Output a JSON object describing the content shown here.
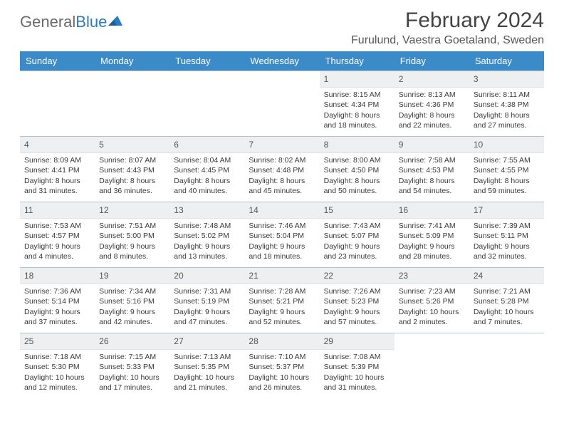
{
  "brand": {
    "part1": "General",
    "part2": "Blue"
  },
  "title": "February 2024",
  "location": "Furulund, Vaestra Goetaland, Sweden",
  "columns": [
    "Sunday",
    "Monday",
    "Tuesday",
    "Wednesday",
    "Thursday",
    "Friday",
    "Saturday"
  ],
  "colors": {
    "header_bg": "#3b8bc8",
    "header_fg": "#ffffff",
    "daynum_bg": "#edeff1",
    "border": "#b8c2cc"
  },
  "weeks": [
    [
      {
        "n": "",
        "sr": "",
        "ss": "",
        "d1": "",
        "d2": ""
      },
      {
        "n": "",
        "sr": "",
        "ss": "",
        "d1": "",
        "d2": ""
      },
      {
        "n": "",
        "sr": "",
        "ss": "",
        "d1": "",
        "d2": ""
      },
      {
        "n": "",
        "sr": "",
        "ss": "",
        "d1": "",
        "d2": ""
      },
      {
        "n": "1",
        "sr": "Sunrise: 8:15 AM",
        "ss": "Sunset: 4:34 PM",
        "d1": "Daylight: 8 hours",
        "d2": "and 18 minutes."
      },
      {
        "n": "2",
        "sr": "Sunrise: 8:13 AM",
        "ss": "Sunset: 4:36 PM",
        "d1": "Daylight: 8 hours",
        "d2": "and 22 minutes."
      },
      {
        "n": "3",
        "sr": "Sunrise: 8:11 AM",
        "ss": "Sunset: 4:38 PM",
        "d1": "Daylight: 8 hours",
        "d2": "and 27 minutes."
      }
    ],
    [
      {
        "n": "4",
        "sr": "Sunrise: 8:09 AM",
        "ss": "Sunset: 4:41 PM",
        "d1": "Daylight: 8 hours",
        "d2": "and 31 minutes."
      },
      {
        "n": "5",
        "sr": "Sunrise: 8:07 AM",
        "ss": "Sunset: 4:43 PM",
        "d1": "Daylight: 8 hours",
        "d2": "and 36 minutes."
      },
      {
        "n": "6",
        "sr": "Sunrise: 8:04 AM",
        "ss": "Sunset: 4:45 PM",
        "d1": "Daylight: 8 hours",
        "d2": "and 40 minutes."
      },
      {
        "n": "7",
        "sr": "Sunrise: 8:02 AM",
        "ss": "Sunset: 4:48 PM",
        "d1": "Daylight: 8 hours",
        "d2": "and 45 minutes."
      },
      {
        "n": "8",
        "sr": "Sunrise: 8:00 AM",
        "ss": "Sunset: 4:50 PM",
        "d1": "Daylight: 8 hours",
        "d2": "and 50 minutes."
      },
      {
        "n": "9",
        "sr": "Sunrise: 7:58 AM",
        "ss": "Sunset: 4:53 PM",
        "d1": "Daylight: 8 hours",
        "d2": "and 54 minutes."
      },
      {
        "n": "10",
        "sr": "Sunrise: 7:55 AM",
        "ss": "Sunset: 4:55 PM",
        "d1": "Daylight: 8 hours",
        "d2": "and 59 minutes."
      }
    ],
    [
      {
        "n": "11",
        "sr": "Sunrise: 7:53 AM",
        "ss": "Sunset: 4:57 PM",
        "d1": "Daylight: 9 hours",
        "d2": "and 4 minutes."
      },
      {
        "n": "12",
        "sr": "Sunrise: 7:51 AM",
        "ss": "Sunset: 5:00 PM",
        "d1": "Daylight: 9 hours",
        "d2": "and 8 minutes."
      },
      {
        "n": "13",
        "sr": "Sunrise: 7:48 AM",
        "ss": "Sunset: 5:02 PM",
        "d1": "Daylight: 9 hours",
        "d2": "and 13 minutes."
      },
      {
        "n": "14",
        "sr": "Sunrise: 7:46 AM",
        "ss": "Sunset: 5:04 PM",
        "d1": "Daylight: 9 hours",
        "d2": "and 18 minutes."
      },
      {
        "n": "15",
        "sr": "Sunrise: 7:43 AM",
        "ss": "Sunset: 5:07 PM",
        "d1": "Daylight: 9 hours",
        "d2": "and 23 minutes."
      },
      {
        "n": "16",
        "sr": "Sunrise: 7:41 AM",
        "ss": "Sunset: 5:09 PM",
        "d1": "Daylight: 9 hours",
        "d2": "and 28 minutes."
      },
      {
        "n": "17",
        "sr": "Sunrise: 7:39 AM",
        "ss": "Sunset: 5:11 PM",
        "d1": "Daylight: 9 hours",
        "d2": "and 32 minutes."
      }
    ],
    [
      {
        "n": "18",
        "sr": "Sunrise: 7:36 AM",
        "ss": "Sunset: 5:14 PM",
        "d1": "Daylight: 9 hours",
        "d2": "and 37 minutes."
      },
      {
        "n": "19",
        "sr": "Sunrise: 7:34 AM",
        "ss": "Sunset: 5:16 PM",
        "d1": "Daylight: 9 hours",
        "d2": "and 42 minutes."
      },
      {
        "n": "20",
        "sr": "Sunrise: 7:31 AM",
        "ss": "Sunset: 5:19 PM",
        "d1": "Daylight: 9 hours",
        "d2": "and 47 minutes."
      },
      {
        "n": "21",
        "sr": "Sunrise: 7:28 AM",
        "ss": "Sunset: 5:21 PM",
        "d1": "Daylight: 9 hours",
        "d2": "and 52 minutes."
      },
      {
        "n": "22",
        "sr": "Sunrise: 7:26 AM",
        "ss": "Sunset: 5:23 PM",
        "d1": "Daylight: 9 hours",
        "d2": "and 57 minutes."
      },
      {
        "n": "23",
        "sr": "Sunrise: 7:23 AM",
        "ss": "Sunset: 5:26 PM",
        "d1": "Daylight: 10 hours",
        "d2": "and 2 minutes."
      },
      {
        "n": "24",
        "sr": "Sunrise: 7:21 AM",
        "ss": "Sunset: 5:28 PM",
        "d1": "Daylight: 10 hours",
        "d2": "and 7 minutes."
      }
    ],
    [
      {
        "n": "25",
        "sr": "Sunrise: 7:18 AM",
        "ss": "Sunset: 5:30 PM",
        "d1": "Daylight: 10 hours",
        "d2": "and 12 minutes."
      },
      {
        "n": "26",
        "sr": "Sunrise: 7:15 AM",
        "ss": "Sunset: 5:33 PM",
        "d1": "Daylight: 10 hours",
        "d2": "and 17 minutes."
      },
      {
        "n": "27",
        "sr": "Sunrise: 7:13 AM",
        "ss": "Sunset: 5:35 PM",
        "d1": "Daylight: 10 hours",
        "d2": "and 21 minutes."
      },
      {
        "n": "28",
        "sr": "Sunrise: 7:10 AM",
        "ss": "Sunset: 5:37 PM",
        "d1": "Daylight: 10 hours",
        "d2": "and 26 minutes."
      },
      {
        "n": "29",
        "sr": "Sunrise: 7:08 AM",
        "ss": "Sunset: 5:39 PM",
        "d1": "Daylight: 10 hours",
        "d2": "and 31 minutes."
      },
      {
        "n": "",
        "sr": "",
        "ss": "",
        "d1": "",
        "d2": ""
      },
      {
        "n": "",
        "sr": "",
        "ss": "",
        "d1": "",
        "d2": ""
      }
    ]
  ]
}
